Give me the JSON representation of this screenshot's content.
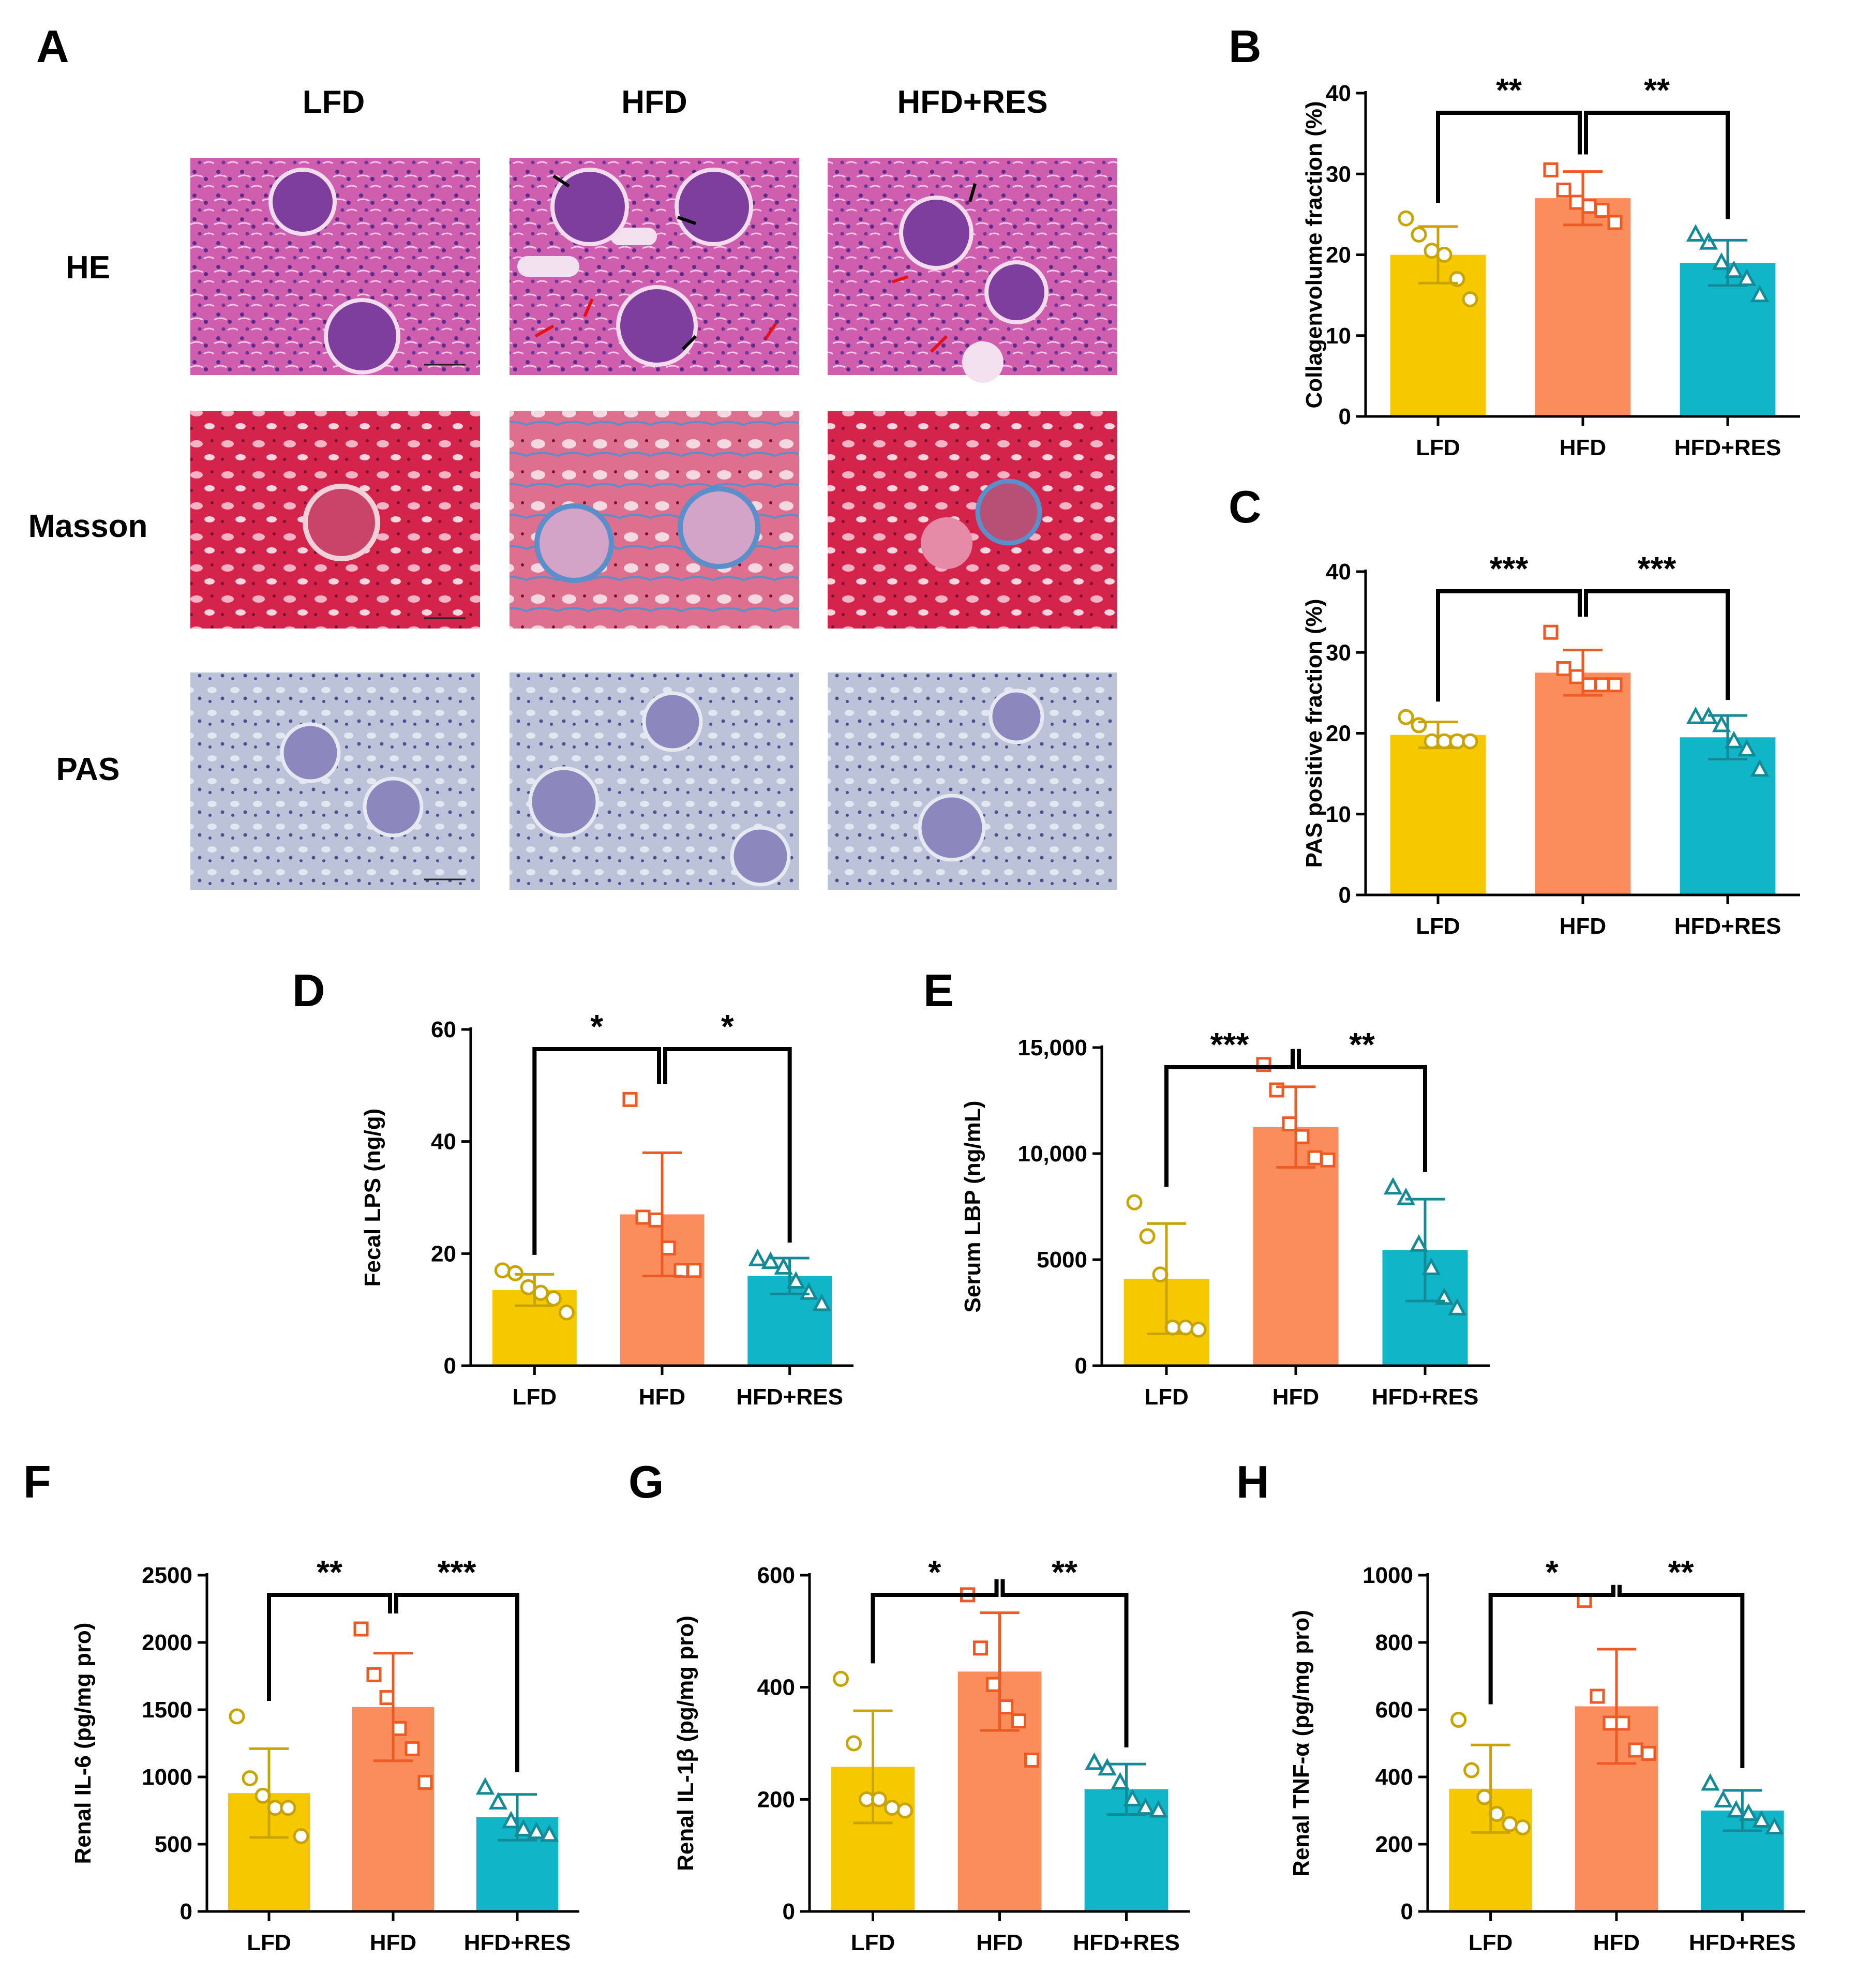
{
  "figure": {
    "panel_A": {
      "letter": "A",
      "columns": [
        "LFD",
        "HFD",
        "HFD+RES"
      ],
      "rows": [
        "HE",
        "Masson",
        "PAS"
      ]
    },
    "groups": [
      "LFD",
      "HFD",
      "HFD+RES"
    ],
    "colors": {
      "LFD": "#F5C800",
      "HFD": "#FB8C5C",
      "HFD+RES": "#10B5C8",
      "LFD_marker": "#C9A400",
      "HFD_marker": "#EE5A24",
      "HFD+RES_marker": "#138A97"
    },
    "histology_colors": {
      "HE": [
        "#D15FB0",
        "#E7A9DA",
        "#5A2C8E"
      ],
      "Masson": [
        "#D4244C",
        "#EE8FA8",
        "#5B8FC9"
      ],
      "PAS": [
        "#B7BFD6",
        "#DCE1EC",
        "#5E5C9E"
      ]
    }
  },
  "chart_data": [
    {
      "id": "B",
      "type": "bar",
      "ylabel": "Collagenvolume fraction (%)",
      "ylim": [
        0,
        40
      ],
      "yticks": [
        0,
        10,
        20,
        30,
        40
      ],
      "ytick_labels": [
        "0",
        "10",
        "20",
        "30",
        "40"
      ],
      "categories": [
        "LFD",
        "HFD",
        "HFD+RES"
      ],
      "means": [
        20,
        27,
        19
      ],
      "sd": [
        3.5,
        3.3,
        2.8
      ],
      "points": [
        [
          24.5,
          22.5,
          20.5,
          20,
          17,
          14.5
        ],
        [
          30.5,
          28,
          26.5,
          26,
          25.5,
          24
        ],
        [
          22.5,
          21.5,
          19,
          18,
          17,
          15
        ]
      ],
      "markers": [
        "circle",
        "square",
        "triangle"
      ],
      "significance": [
        {
          "from": 0,
          "to": 1,
          "label": "**"
        },
        {
          "from": 1,
          "to": 2,
          "label": "**"
        }
      ]
    },
    {
      "id": "C",
      "type": "bar",
      "ylabel": "PAS positive fraction (%)",
      "ylim": [
        0,
        40
      ],
      "yticks": [
        0,
        10,
        20,
        30,
        40
      ],
      "ytick_labels": [
        "0",
        "10",
        "20",
        "30",
        "40"
      ],
      "categories": [
        "LFD",
        "HFD",
        "HFD+RES"
      ],
      "means": [
        19.8,
        27.5,
        19.5
      ],
      "sd": [
        1.6,
        2.8,
        2.7
      ],
      "points": [
        [
          22,
          21,
          19,
          19,
          19,
          19
        ],
        [
          32.5,
          28,
          27,
          26,
          26,
          26
        ],
        [
          22,
          22,
          21,
          19,
          18,
          15.5
        ]
      ],
      "markers": [
        "circle",
        "square",
        "triangle"
      ],
      "significance": [
        {
          "from": 0,
          "to": 1,
          "label": "***"
        },
        {
          "from": 1,
          "to": 2,
          "label": "***"
        }
      ]
    },
    {
      "id": "D",
      "type": "bar",
      "ylabel": "Fecal LPS (ng/g)",
      "ylim": [
        0,
        60
      ],
      "yticks": [
        0,
        20,
        40,
        60
      ],
      "ytick_labels": [
        "0",
        "20",
        "40",
        "60"
      ],
      "categories": [
        "LFD",
        "HFD",
        "HFD+RES"
      ],
      "means": [
        13.5,
        27,
        16
      ],
      "sd": [
        2.8,
        11,
        3.2
      ],
      "points": [
        [
          17,
          16.5,
          14,
          13,
          12,
          9.5
        ],
        [
          47.5,
          26.5,
          26,
          21,
          17,
          17
        ],
        [
          19,
          18.5,
          17.5,
          15,
          13,
          11
        ]
      ],
      "markers": [
        "circle",
        "square",
        "triangle"
      ],
      "significance": [
        {
          "from": 0,
          "to": 1,
          "label": "*"
        },
        {
          "from": 1,
          "to": 2,
          "label": "*"
        }
      ]
    },
    {
      "id": "E",
      "type": "bar",
      "ylabel": "Serum LBP (ng/mL)",
      "ylim": [
        0,
        15000
      ],
      "yticks": [
        0,
        5000,
        10000,
        15000
      ],
      "ytick_labels": [
        "0",
        "5000",
        "10,000",
        "15,000"
      ],
      "categories": [
        "LFD",
        "HFD",
        "HFD+RES"
      ],
      "means": [
        4100,
        11250,
        5450
      ],
      "sd": [
        2600,
        1900,
        2400
      ],
      "points": [
        [
          7700,
          6100,
          4300,
          1800,
          1800,
          1700
        ],
        [
          14200,
          13000,
          11400,
          10800,
          9800,
          9700
        ],
        [
          8400,
          7900,
          5700,
          4600,
          3200,
          2700
        ]
      ],
      "markers": [
        "circle",
        "square",
        "triangle"
      ],
      "significance": [
        {
          "from": 0,
          "to": 1,
          "label": "***"
        },
        {
          "from": 1,
          "to": 2,
          "label": "**"
        }
      ]
    },
    {
      "id": "F",
      "type": "bar",
      "ylabel": "Renal IL-6 (pg/mg pro)",
      "ylim": [
        0,
        2500
      ],
      "yticks": [
        0,
        500,
        1000,
        1500,
        2000,
        2500
      ],
      "ytick_labels": [
        "0",
        "500",
        "1000",
        "1500",
        "2000",
        "2500"
      ],
      "categories": [
        "LFD",
        "HFD",
        "HFD+RES"
      ],
      "means": [
        880,
        1520,
        700
      ],
      "sd": [
        330,
        400,
        170
      ],
      "points": [
        [
          1450,
          990,
          860,
          770,
          770,
          560
        ],
        [
          2100,
          1760,
          1590,
          1360,
          1210,
          960
        ],
        [
          920,
          810,
          670,
          610,
          590,
          570
        ]
      ],
      "markers": [
        "circle",
        "square",
        "triangle"
      ],
      "significance": [
        {
          "from": 0,
          "to": 1,
          "label": "**"
        },
        {
          "from": 1,
          "to": 2,
          "label": "***"
        }
      ]
    },
    {
      "id": "G",
      "type": "bar",
      "ylabel": "Renal IL-1β (pg/mg pro)",
      "ylim": [
        0,
        600
      ],
      "yticks": [
        0,
        200,
        400,
        600
      ],
      "ytick_labels": [
        "0",
        "200",
        "400",
        "600"
      ],
      "categories": [
        "LFD",
        "HFD",
        "HFD+RES"
      ],
      "means": [
        258,
        428,
        218
      ],
      "sd": [
        100,
        105,
        45
      ],
      "points": [
        [
          415,
          300,
          200,
          200,
          185,
          180
        ],
        [
          565,
          470,
          405,
          365,
          340,
          270
        ],
        [
          265,
          255,
          230,
          200,
          185,
          180
        ]
      ],
      "markers": [
        "circle",
        "square",
        "triangle"
      ],
      "significance": [
        {
          "from": 0,
          "to": 1,
          "label": "*"
        },
        {
          "from": 1,
          "to": 2,
          "label": "**"
        }
      ]
    },
    {
      "id": "H",
      "type": "bar",
      "ylabel": "Renal TNF-α (pg/mg pro)",
      "ylim": [
        0,
        1000
      ],
      "yticks": [
        0,
        200,
        400,
        600,
        800,
        1000
      ],
      "ytick_labels": [
        "0",
        "200",
        "400",
        "600",
        "800",
        "1000"
      ],
      "categories": [
        "LFD",
        "HFD",
        "HFD+RES"
      ],
      "means": [
        365,
        610,
        300
      ],
      "sd": [
        130,
        170,
        60
      ],
      "points": [
        [
          570,
          420,
          340,
          290,
          260,
          250
        ],
        [
          925,
          640,
          560,
          560,
          480,
          470
        ],
        [
          380,
          330,
          300,
          290,
          270,
          250
        ]
      ],
      "markers": [
        "circle",
        "square",
        "triangle"
      ],
      "significance": [
        {
          "from": 0,
          "to": 1,
          "label": "*"
        },
        {
          "from": 1,
          "to": 2,
          "label": "**"
        }
      ]
    }
  ]
}
